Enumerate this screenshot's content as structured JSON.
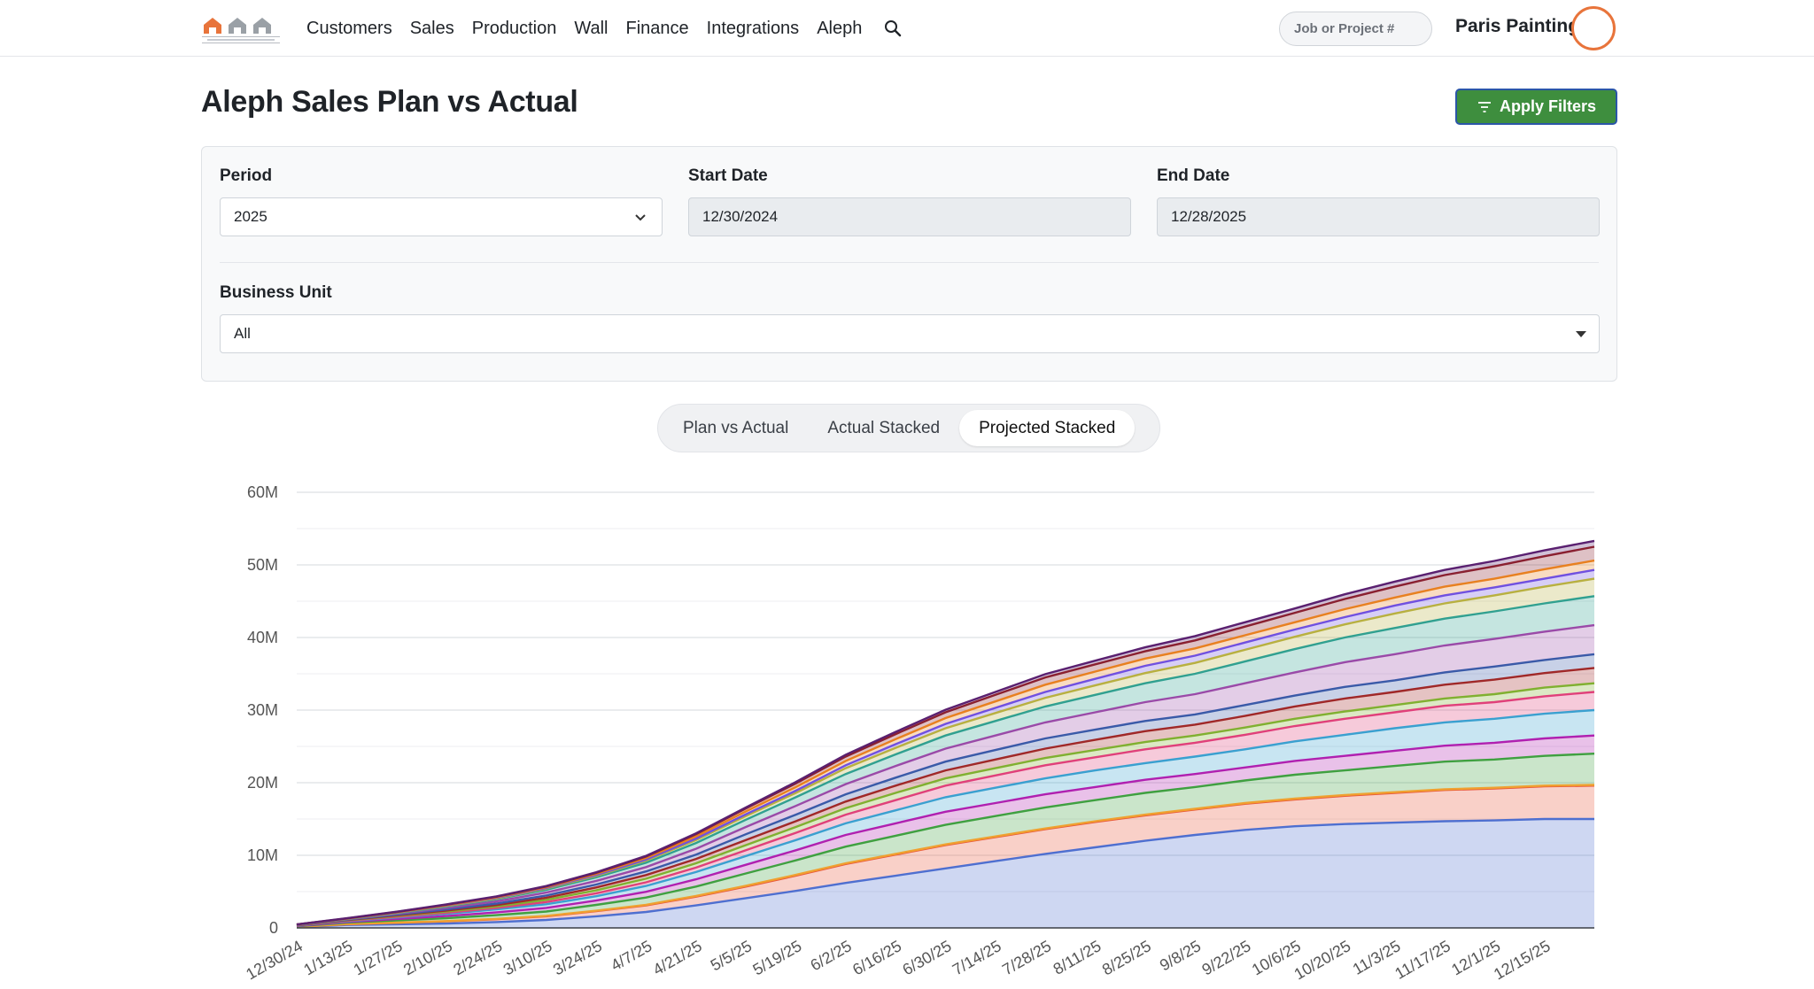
{
  "nav": {
    "items": [
      "Customers",
      "Sales",
      "Production",
      "Wall",
      "Finance",
      "Integrations",
      "Aleph"
    ]
  },
  "search": {
    "placeholder": "Job or Project #"
  },
  "company_name": "Paris Painting",
  "page": {
    "title": "Aleph Sales Plan vs Actual",
    "apply_label": "Apply Filters"
  },
  "filters": {
    "period_label": "Period",
    "period_value": "2025",
    "start_label": "Start Date",
    "start_value": "12/30/2024",
    "end_label": "End Date",
    "end_value": "12/28/2025",
    "bu_label": "Business Unit",
    "bu_value": "All"
  },
  "view_tabs": [
    "Plan vs Actual",
    "Actual Stacked",
    "Projected Stacked"
  ],
  "active_tab": "Projected Stacked",
  "colors": {
    "accent_green": "#3e8e3e",
    "avatar_ring": "#e8743b"
  },
  "chart_data": {
    "type": "area",
    "stacked": true,
    "y_ticks": [
      "0",
      "10M",
      "20M",
      "30M",
      "40M",
      "50M",
      "60M"
    ],
    "ylim": [
      0,
      60000000
    ],
    "grid": true,
    "x": [
      "12/30/24",
      "1/13/25",
      "1/27/25",
      "2/10/25",
      "2/24/25",
      "3/10/25",
      "3/24/25",
      "4/7/25",
      "4/21/25",
      "5/5/25",
      "5/19/25",
      "6/2/25",
      "6/16/25",
      "6/30/25",
      "7/14/25",
      "7/28/25",
      "8/11/25",
      "8/25/25",
      "9/8/25",
      "9/22/25",
      "10/6/25",
      "10/20/25",
      "11/3/25",
      "11/17/25",
      "12/1/25",
      "12/15/25",
      "12/28/25"
    ],
    "series": [
      {
        "color": "#4e6fd0",
        "values": [
          0.1,
          0.4,
          0.5,
          0.6,
          0.8,
          1.1,
          1.6,
          2.2,
          3.1,
          4.1,
          5.1,
          6.2,
          7.2,
          8.2,
          9.2,
          10.2,
          11.1,
          12.0,
          12.8,
          13.5,
          14.0,
          14.3,
          14.5,
          14.7,
          14.8,
          15.0,
          15.0
        ]
      },
      {
        "color": "#e8563a",
        "values": [
          0.05,
          0.1,
          0.2,
          0.3,
          0.4,
          0.5,
          0.7,
          0.9,
          1.2,
          1.6,
          2.1,
          2.6,
          2.9,
          3.2,
          3.3,
          3.4,
          3.5,
          3.5,
          3.5,
          3.6,
          3.7,
          3.9,
          4.1,
          4.3,
          4.4,
          4.5,
          4.6
        ]
      },
      {
        "color": "#f0a030",
        "values": [
          0.01,
          0.02,
          0.03,
          0.04,
          0.05,
          0.06,
          0.07,
          0.08,
          0.1,
          0.1,
          0.1,
          0.1,
          0.1,
          0.1,
          0.1,
          0.1,
          0.1,
          0.1,
          0.1,
          0.1,
          0.1,
          0.1,
          0.1,
          0.1,
          0.1,
          0.1,
          0.1
        ]
      },
      {
        "color": "#3fa040",
        "values": [
          0.05,
          0.2,
          0.3,
          0.4,
          0.5,
          0.6,
          0.8,
          1.0,
          1.3,
          1.7,
          2.0,
          2.3,
          2.5,
          2.7,
          2.8,
          2.9,
          2.9,
          3.0,
          3.0,
          3.1,
          3.3,
          3.4,
          3.6,
          3.8,
          3.9,
          4.1,
          4.3
        ]
      },
      {
        "color": "#b020b0",
        "values": [
          0.05,
          0.1,
          0.2,
          0.3,
          0.4,
          0.5,
          0.6,
          0.8,
          1.0,
          1.2,
          1.4,
          1.6,
          1.7,
          1.8,
          1.8,
          1.8,
          1.8,
          1.8,
          1.8,
          1.8,
          1.9,
          2.0,
          2.1,
          2.2,
          2.3,
          2.4,
          2.5
        ]
      },
      {
        "color": "#3aa0d0",
        "values": [
          0.05,
          0.1,
          0.2,
          0.3,
          0.4,
          0.5,
          0.6,
          0.8,
          1.0,
          1.2,
          1.4,
          1.6,
          1.8,
          2.0,
          2.1,
          2.2,
          2.3,
          2.3,
          2.4,
          2.5,
          2.7,
          2.9,
          3.1,
          3.2,
          3.3,
          3.4,
          3.5
        ]
      },
      {
        "color": "#e0407a",
        "values": [
          0.02,
          0.05,
          0.1,
          0.15,
          0.2,
          0.3,
          0.4,
          0.5,
          0.6,
          0.8,
          1.0,
          1.2,
          1.4,
          1.6,
          1.7,
          1.8,
          1.8,
          1.9,
          1.9,
          2.0,
          2.1,
          2.2,
          2.2,
          2.3,
          2.3,
          2.4,
          2.5
        ]
      },
      {
        "color": "#80b030",
        "values": [
          0.02,
          0.05,
          0.1,
          0.15,
          0.2,
          0.3,
          0.4,
          0.5,
          0.6,
          0.7,
          0.8,
          0.9,
          1.0,
          1.0,
          1.0,
          1.0,
          1.0,
          1.0,
          1.0,
          1.0,
          1.0,
          1.0,
          1.0,
          1.0,
          1.1,
          1.2,
          1.2
        ]
      },
      {
        "color": "#a02828",
        "values": [
          0.02,
          0.05,
          0.1,
          0.15,
          0.2,
          0.3,
          0.4,
          0.5,
          0.6,
          0.7,
          0.8,
          0.9,
          1.0,
          1.1,
          1.2,
          1.3,
          1.4,
          1.5,
          1.5,
          1.6,
          1.7,
          1.8,
          1.8,
          1.9,
          2.0,
          2.0,
          2.1
        ]
      },
      {
        "color": "#3a5aa8",
        "values": [
          0.02,
          0.05,
          0.1,
          0.15,
          0.2,
          0.3,
          0.4,
          0.5,
          0.6,
          0.8,
          0.9,
          1.0,
          1.1,
          1.2,
          1.3,
          1.4,
          1.4,
          1.4,
          1.4,
          1.5,
          1.5,
          1.6,
          1.6,
          1.7,
          1.8,
          1.8,
          1.9
        ]
      },
      {
        "color": "#9a4aa8",
        "values": [
          0.02,
          0.05,
          0.1,
          0.2,
          0.3,
          0.4,
          0.5,
          0.6,
          0.8,
          1.0,
          1.2,
          1.4,
          1.6,
          1.8,
          2.0,
          2.2,
          2.4,
          2.6,
          2.8,
          3.0,
          3.2,
          3.4,
          3.6,
          3.7,
          3.8,
          3.9,
          4.0
        ]
      },
      {
        "color": "#30a090",
        "values": [
          0.02,
          0.05,
          0.1,
          0.2,
          0.3,
          0.4,
          0.5,
          0.6,
          0.8,
          1.0,
          1.2,
          1.4,
          1.6,
          1.8,
          2.0,
          2.2,
          2.4,
          2.6,
          2.8,
          3.0,
          3.2,
          3.4,
          3.6,
          3.7,
          3.8,
          3.9,
          4.0
        ]
      },
      {
        "color": "#b8b040",
        "values": [
          0.01,
          0.03,
          0.05,
          0.08,
          0.1,
          0.15,
          0.2,
          0.3,
          0.4,
          0.5,
          0.6,
          0.8,
          0.9,
          1.0,
          1.1,
          1.2,
          1.3,
          1.4,
          1.5,
          1.6,
          1.7,
          1.8,
          2.0,
          2.1,
          2.2,
          2.3,
          2.4
        ]
      },
      {
        "color": "#7050e0",
        "values": [
          0.01,
          0.02,
          0.04,
          0.06,
          0.08,
          0.1,
          0.12,
          0.15,
          0.2,
          0.25,
          0.3,
          0.4,
          0.5,
          0.6,
          0.7,
          0.8,
          0.9,
          1.0,
          1.0,
          1.0,
          1.0,
          1.0,
          1.1,
          1.1,
          1.1,
          1.1,
          1.2
        ]
      },
      {
        "color": "#e88020",
        "values": [
          0.01,
          0.02,
          0.04,
          0.06,
          0.08,
          0.1,
          0.15,
          0.2,
          0.3,
          0.4,
          0.5,
          0.6,
          0.7,
          0.8,
          0.9,
          1.0,
          1.0,
          1.0,
          1.0,
          1.0,
          1.0,
          1.1,
          1.1,
          1.2,
          1.2,
          1.3,
          1.3
        ]
      },
      {
        "color": "#8a2030",
        "values": [
          0.01,
          0.02,
          0.04,
          0.06,
          0.08,
          0.1,
          0.15,
          0.2,
          0.3,
          0.4,
          0.5,
          0.6,
          0.7,
          0.8,
          0.9,
          1.0,
          1.0,
          1.0,
          1.1,
          1.2,
          1.3,
          1.4,
          1.5,
          1.6,
          1.7,
          1.8,
          1.9
        ]
      },
      {
        "color": "#5a2070",
        "values": [
          0.01,
          0.02,
          0.03,
          0.04,
          0.05,
          0.06,
          0.08,
          0.1,
          0.12,
          0.15,
          0.2,
          0.25,
          0.3,
          0.35,
          0.4,
          0.45,
          0.5,
          0.55,
          0.6,
          0.6,
          0.6,
          0.65,
          0.7,
          0.7,
          0.75,
          0.8,
          0.8
        ]
      }
    ]
  }
}
